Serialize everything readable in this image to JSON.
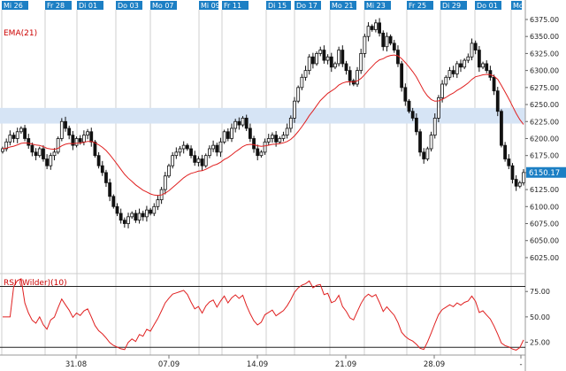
{
  "chart_data": {
    "type": "candlestick",
    "top_date_labels": [
      "Mi 26",
      "Fr 28",
      "Di 01",
      "Do 03",
      "Mo 07",
      "Mi 09",
      "Fr 11",
      "Di 15",
      "Do 17",
      "Mo 21",
      "Mi 23",
      "Fr 25",
      "Di 29",
      "Do 01",
      "Mo"
    ],
    "bottom_week_labels": [
      "31.08",
      "07.09",
      "14.09",
      "21.09",
      "28.09",
      "-"
    ],
    "price_ticks": [
      "6375.00",
      "6350.00",
      "6325.00",
      "6300.00",
      "6275.00",
      "6250.00",
      "6225.00",
      "6200.00",
      "6175.00",
      "6150.00",
      "6125.00",
      "6100.00",
      "6075.00",
      "6050.00",
      "6025.00"
    ],
    "price_ylim": [
      6008,
      6388
    ],
    "current_price_label": "6150.17",
    "current_price": 6150.17,
    "highlight_band": [
      6222,
      6245
    ],
    "ema_label": "EMA(21)",
    "rsi_label": "RSI (Wilder)(10)",
    "rsi_ticks": [
      "75.00",
      "50.00",
      "25.00"
    ],
    "rsi_levels": [
      80,
      20
    ],
    "rsi_ylim": [
      15,
      90
    ],
    "colors": {
      "ema": "#e02020",
      "rsi": "#e02020",
      "candle": "#111111",
      "band": "#d6e4f5",
      "label_bg": "#1c7fc4",
      "label_text": "#ffffff",
      "grid": "#cfcfcf"
    },
    "close": [
      6185,
      6195,
      6205,
      6200,
      6210,
      6215,
      6200,
      6190,
      6180,
      6175,
      6185,
      6170,
      6160,
      6175,
      6180,
      6200,
      6225,
      6215,
      6205,
      6190,
      6200,
      6195,
      6205,
      6210,
      6195,
      6175,
      6160,
      6150,
      6135,
      6115,
      6100,
      6090,
      6080,
      6075,
      6085,
      6090,
      6080,
      6090,
      6085,
      6095,
      6090,
      6100,
      6110,
      6125,
      6145,
      6160,
      6175,
      6180,
      6185,
      6190,
      6185,
      6175,
      6165,
      6170,
      6160,
      6175,
      6185,
      6190,
      6180,
      6195,
      6210,
      6200,
      6215,
      6225,
      6220,
      6230,
      6215,
      6200,
      6185,
      6175,
      6180,
      6195,
      6200,
      6205,
      6195,
      6200,
      6205,
      6215,
      6230,
      6255,
      6275,
      6290,
      6300,
      6320,
      6310,
      6325,
      6330,
      6315,
      6320,
      6305,
      6310,
      6330,
      6310,
      6300,
      6285,
      6280,
      6300,
      6325,
      6350,
      6365,
      6360,
      6370,
      6355,
      6335,
      6350,
      6340,
      6330,
      6310,
      6275,
      6255,
      6240,
      6230,
      6210,
      6180,
      6170,
      6185,
      6205,
      6230,
      6260,
      6280,
      6290,
      6300,
      6295,
      6310,
      6305,
      6315,
      6320,
      6340,
      6330,
      6305,
      6310,
      6300,
      6290,
      6270,
      6240,
      6190,
      6170,
      6160,
      6140,
      6130,
      6135,
      6150
    ]
  }
}
